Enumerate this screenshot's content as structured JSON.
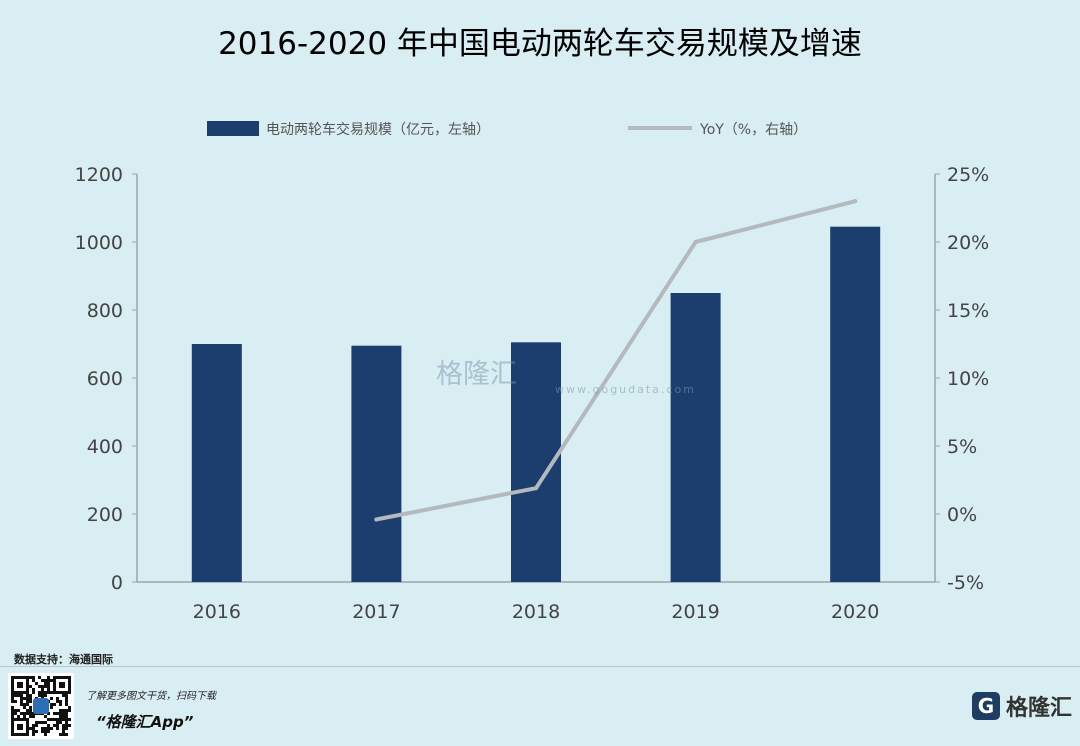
{
  "title": "2016-2020 年中国电动两轮车交易规模及增速",
  "legend": {
    "bar_label": "电动两轮车交易规模（亿元，左轴）",
    "line_label": "YoY（%，右轴）"
  },
  "chart_data": {
    "type": "bar",
    "categories": [
      "2016",
      "2017",
      "2018",
      "2019",
      "2020"
    ],
    "series": [
      {
        "name": "电动两轮车交易规模（亿元，左轴）",
        "type": "bar",
        "axis": "left",
        "values": [
          700,
          695,
          705,
          850,
          1045
        ]
      },
      {
        "name": "YoY（%，右轴）",
        "type": "line",
        "axis": "right",
        "x": [
          "2017",
          "2018",
          "2019",
          "2020"
        ],
        "values": [
          -0.4,
          1.9,
          20.0,
          23.0
        ]
      }
    ],
    "ylim_left": [
      0,
      1200
    ],
    "ylim_right": [
      -5,
      25
    ],
    "left_ticks": [
      "0",
      "200",
      "400",
      "600",
      "800",
      "1000",
      "1200"
    ],
    "right_ticks": [
      "-5%",
      "0%",
      "5%",
      "10%",
      "15%",
      "20%",
      "25%"
    ],
    "colors": {
      "bar": "#1c3e6e",
      "line": "#b3b9bd",
      "axis": "#9aa5a9"
    },
    "grid": false,
    "legend_position": "top"
  },
  "watermark": {
    "chars": "格隆汇",
    "url": "www.gogudata.com"
  },
  "source": "数据支持：海通国际",
  "footer": {
    "promo": "了解更多图文干货，扫码下载",
    "app": "“格隆汇App”",
    "qr_icon": "qr-code-icon",
    "brand_icon": "G",
    "brand": "格隆汇"
  }
}
